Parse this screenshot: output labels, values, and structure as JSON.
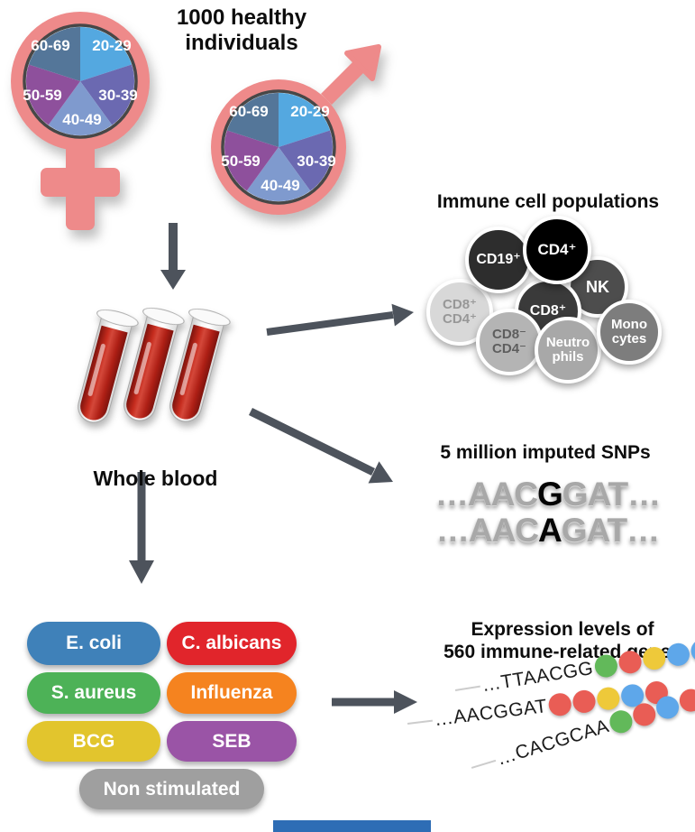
{
  "title": "1000 healthy\nindividuals",
  "demographics": {
    "age_groups": [
      "20-29",
      "30-39",
      "40-49",
      "50-59",
      "60-69"
    ],
    "slice_colors": [
      "#54a8e0",
      "#6b69b1",
      "#7f9ace",
      "#8e509c",
      "#547699"
    ],
    "symbol_color": "#ee8a8a"
  },
  "blood": {
    "label": "Whole blood",
    "tube_color": "#b22018"
  },
  "cells": {
    "title": "Immune cell populations",
    "items": [
      {
        "label": "CD19⁺",
        "bg": "#2d2d2d",
        "fg": "#ffffff"
      },
      {
        "label": "CD4⁺",
        "bg": "#000000",
        "fg": "#ffffff"
      },
      {
        "label": "NK",
        "bg": "#4d4d4d",
        "fg": "#ffffff"
      },
      {
        "label": "CD8⁺",
        "bg": "#3a3a3a",
        "fg": "#ffffff"
      },
      {
        "label": "CD8⁺\nCD4⁺",
        "bg": "#d8d8d8",
        "fg": "#979797"
      },
      {
        "label": "CD8⁻\nCD4⁻",
        "bg": "#b4b4b4",
        "fg": "#5e5e5e"
      },
      {
        "label": "Neutro\nphils",
        "bg": "#a8a8a8",
        "fg": "#ffffff"
      },
      {
        "label": "Mono\ncytes",
        "bg": "#7d7d7d",
        "fg": "#ffffff"
      }
    ]
  },
  "snps": {
    "title": "5 million imputed SNPs",
    "lines": [
      {
        "prefix": "…AAC",
        "snp": "G",
        "suffix": "GAT…"
      },
      {
        "prefix": "…AAC",
        "snp": "A",
        "suffix": "GAT…"
      }
    ]
  },
  "stimuli": {
    "items": [
      {
        "label": "E. coli",
        "color": "#3f81b9"
      },
      {
        "label": "C. albicans",
        "color": "#e1252b"
      },
      {
        "label": "S. aureus",
        "color": "#4db257"
      },
      {
        "label": "Influenza",
        "color": "#f5831f"
      },
      {
        "label": "BCG",
        "color": "#e2c52d"
      },
      {
        "label": "SEB",
        "color": "#9a54a6"
      },
      {
        "label": "Non stimulated",
        "color": "#9f9f9f"
      }
    ]
  },
  "expression": {
    "title": "Expression levels of\n560 immune-related genes",
    "genes": [
      {
        "sequence": "…TTAACGG",
        "dots": [
          "green",
          "red",
          "yellow",
          "blue",
          "blue"
        ]
      },
      {
        "sequence": "…AACGGAT",
        "dots": [
          "red",
          "red",
          "yellow",
          "blue",
          "red"
        ]
      },
      {
        "sequence": "…CACGCAA",
        "dots": [
          "green",
          "red",
          "blue",
          "red",
          "red"
        ]
      }
    ],
    "dot_colors": {
      "green": "#62b95a",
      "red": "#e95d55",
      "yellow": "#eec93a",
      "blue": "#5ea7ea"
    }
  },
  "arrow_color": "#4d535c",
  "partial_bar_color": "#2e6db5"
}
